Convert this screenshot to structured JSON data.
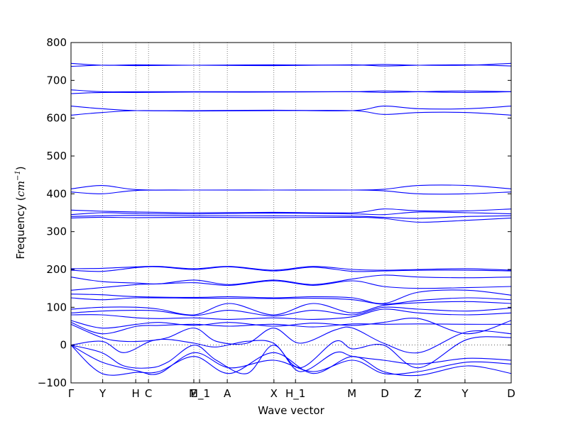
{
  "chart_data": {
    "type": "line",
    "xlabel": "Wave vector",
    "ylabel": "Frequency (cm⁻¹)",
    "ylabel_parts": {
      "main": "Frequency (",
      "unit": "cm",
      "exponent": "−1",
      "close": ")"
    },
    "ylim": [
      -100,
      800
    ],
    "yticks": [
      -100,
      0,
      100,
      200,
      300,
      400,
      500,
      600,
      700,
      800
    ],
    "xlim": [
      0,
      1
    ],
    "high_symmetry_points": [
      {
        "label": "Γ",
        "x": 0.0
      },
      {
        "label": "Y",
        "x": 0.072
      },
      {
        "label": "H",
        "x": 0.147
      },
      {
        "label": "C",
        "x": 0.176
      },
      {
        "label": "E",
        "x": 0.279
      },
      {
        "label": "M_1",
        "x": 0.292
      },
      {
        "label": "A",
        "x": 0.355
      },
      {
        "label": "X",
        "x": 0.461
      },
      {
        "label": "H_1",
        "x": 0.51
      },
      {
        "label": "M",
        "x": 0.638
      },
      {
        "label": "D",
        "x": 0.713
      },
      {
        "label": "Z",
        "x": 0.788
      },
      {
        "label": "Y",
        "x": 0.895
      },
      {
        "label": "D",
        "x": 1.0
      }
    ],
    "zero_line": {
      "y": 0,
      "style": "dotted"
    },
    "line_color": "#0000ff",
    "series": [
      {
        "x": [
          0,
          0.07,
          0.15,
          0.28,
          0.46,
          0.64,
          0.71,
          0.79,
          0.9,
          1.0
        ],
        "y": [
          745,
          740,
          741,
          740,
          741,
          740,
          742,
          740,
          740,
          745
        ]
      },
      {
        "x": [
          0,
          0.07,
          0.15,
          0.28,
          0.46,
          0.64,
          0.71,
          0.79,
          0.9,
          1.0
        ],
        "y": [
          737,
          740,
          739,
          740,
          739,
          741,
          738,
          740,
          741,
          738
        ]
      },
      {
        "x": [
          0,
          0.07,
          0.15,
          0.28,
          0.46,
          0.64,
          0.71,
          0.79,
          0.9,
          1.0
        ],
        "y": [
          675,
          670,
          670,
          670,
          670,
          670,
          668,
          670,
          672,
          670
        ]
      },
      {
        "x": [
          0,
          0.07,
          0.15,
          0.28,
          0.46,
          0.64,
          0.71,
          0.79,
          0.9,
          1.0
        ],
        "y": [
          665,
          668,
          668,
          669,
          669,
          670,
          672,
          670,
          668,
          670
        ]
      },
      {
        "x": [
          0,
          0.07,
          0.15,
          0.28,
          0.46,
          0.64,
          0.71,
          0.79,
          0.9,
          1.0
        ],
        "y": [
          632,
          625,
          620,
          620,
          621,
          620,
          632,
          625,
          625,
          632
        ]
      },
      {
        "x": [
          0,
          0.07,
          0.15,
          0.28,
          0.46,
          0.64,
          0.71,
          0.79,
          0.9,
          1.0
        ],
        "y": [
          608,
          615,
          620,
          619,
          620,
          620,
          610,
          615,
          615,
          608
        ]
      },
      {
        "x": [
          0,
          0.07,
          0.15,
          0.28,
          0.46,
          0.64,
          0.71,
          0.79,
          0.9,
          1.0
        ],
        "y": [
          413,
          422,
          411,
          410,
          410,
          410,
          412,
          422,
          422,
          413
        ]
      },
      {
        "x": [
          0,
          0.07,
          0.15,
          0.28,
          0.46,
          0.64,
          0.71,
          0.79,
          0.9,
          1.0
        ],
        "y": [
          405,
          400,
          409,
          410,
          410,
          410,
          408,
          400,
          400,
          405
        ]
      },
      {
        "x": [
          0,
          0.07,
          0.15,
          0.28,
          0.46,
          0.64,
          0.71,
          0.79,
          0.9,
          1.0
        ],
        "y": [
          357,
          354,
          352,
          350,
          351,
          350,
          360,
          355,
          355,
          360
        ]
      },
      {
        "x": [
          0,
          0.07,
          0.15,
          0.28,
          0.46,
          0.64,
          0.71,
          0.79,
          0.9,
          1.0
        ],
        "y": [
          345,
          350,
          348,
          347,
          349,
          347,
          345,
          352,
          350,
          347
        ]
      },
      {
        "x": [
          0,
          0.07,
          0.15,
          0.28,
          0.46,
          0.64,
          0.71,
          0.79,
          0.9,
          1.0
        ],
        "y": [
          340,
          342,
          343,
          342,
          342,
          341,
          338,
          335,
          340,
          342
        ]
      },
      {
        "x": [
          0,
          0.07,
          0.15,
          0.28,
          0.46,
          0.64,
          0.71,
          0.79,
          0.9,
          1.0
        ],
        "y": [
          336,
          338,
          337,
          338,
          337,
          338,
          335,
          325,
          330,
          336
        ]
      },
      {
        "x": [
          0,
          0.07,
          0.15,
          0.2,
          0.28,
          0.36,
          0.46,
          0.55,
          0.64,
          0.71,
          0.79,
          0.9,
          1.0
        ],
        "y": [
          202,
          203,
          207,
          208,
          202,
          208,
          198,
          208,
          200,
          198,
          200,
          202,
          198
        ]
      },
      {
        "x": [
          0,
          0.07,
          0.15,
          0.2,
          0.28,
          0.36,
          0.46,
          0.55,
          0.64,
          0.71,
          0.79,
          0.9,
          1.0
        ],
        "y": [
          198,
          195,
          205,
          207,
          200,
          207,
          196,
          206,
          195,
          196,
          198,
          198,
          196
        ]
      },
      {
        "x": [
          0,
          0.07,
          0.15,
          0.2,
          0.28,
          0.36,
          0.46,
          0.55,
          0.64,
          0.71,
          0.79,
          0.9,
          1.0
        ],
        "y": [
          180,
          168,
          164,
          162,
          172,
          160,
          172,
          160,
          175,
          185,
          180,
          178,
          180
        ]
      },
      {
        "x": [
          0,
          0.07,
          0.15,
          0.2,
          0.28,
          0.36,
          0.46,
          0.55,
          0.64,
          0.71,
          0.79,
          0.9,
          1.0
        ],
        "y": [
          145,
          152,
          160,
          162,
          165,
          158,
          170,
          158,
          170,
          155,
          150,
          152,
          155
        ]
      },
      {
        "x": [
          0,
          0.07,
          0.15,
          0.28,
          0.36,
          0.46,
          0.55,
          0.64,
          0.71,
          0.79,
          0.9,
          1.0
        ],
        "y": [
          135,
          133,
          128,
          126,
          128,
          125,
          128,
          125,
          110,
          140,
          145,
          132
        ]
      },
      {
        "x": [
          0,
          0.07,
          0.15,
          0.28,
          0.36,
          0.46,
          0.55,
          0.64,
          0.71,
          0.79,
          0.9,
          1.0
        ],
        "y": [
          125,
          120,
          125,
          124,
          124,
          123,
          124,
          120,
          108,
          118,
          125,
          120
        ]
      },
      {
        "x": [
          0,
          0.07,
          0.15,
          0.2,
          0.28,
          0.36,
          0.46,
          0.55,
          0.64,
          0.71,
          0.79,
          0.9,
          1.0
        ],
        "y": [
          95,
          100,
          100,
          95,
          80,
          110,
          80,
          110,
          85,
          105,
          112,
          115,
          110
        ]
      },
      {
        "x": [
          0,
          0.07,
          0.15,
          0.2,
          0.28,
          0.36,
          0.46,
          0.55,
          0.64,
          0.71,
          0.79,
          0.9,
          1.0
        ],
        "y": [
          85,
          90,
          92,
          90,
          78,
          92,
          77,
          92,
          80,
          100,
          95,
          90,
          98
        ]
      },
      {
        "x": [
          0,
          0.07,
          0.15,
          0.2,
          0.28,
          0.36,
          0.46,
          0.55,
          0.64,
          0.71,
          0.79,
          0.9,
          1.0
        ],
        "y": [
          80,
          80,
          72,
          70,
          72,
          68,
          72,
          68,
          75,
          95,
          85,
          80,
          85
        ]
      },
      {
        "x": [
          0,
          0.07,
          0.15,
          0.2,
          0.28,
          0.36,
          0.46,
          0.55,
          0.64,
          0.71,
          0.79,
          0.9,
          1.0
        ],
        "y": [
          65,
          45,
          55,
          60,
          52,
          60,
          50,
          58,
          52,
          60,
          70,
          30,
          65
        ]
      },
      {
        "x": [
          0,
          0.07,
          0.15,
          0.2,
          0.28,
          0.36,
          0.46,
          0.55,
          0.64,
          0.71,
          0.79,
          0.9,
          1.0
        ],
        "y": [
          60,
          30,
          50,
          52,
          55,
          50,
          55,
          48,
          56,
          55,
          56,
          55,
          55
        ]
      },
      {
        "x": [
          0,
          0.07,
          0.12,
          0.18,
          0.22,
          0.28,
          0.33,
          0.4,
          0.46,
          0.52,
          0.6,
          0.64,
          0.71,
          0.79,
          0.9,
          1.0
        ],
        "y": [
          55,
          20,
          10,
          12,
          20,
          45,
          10,
          5,
          45,
          5,
          40,
          45,
          5,
          -20,
          35,
          30
        ]
      },
      {
        "x": [
          0,
          0.07,
          0.12,
          0.18,
          0.22,
          0.28,
          0.33,
          0.4,
          0.46,
          0.52,
          0.6,
          0.64,
          0.71,
          0.79,
          0.9,
          1.0
        ],
        "y": [
          0,
          10,
          -20,
          10,
          15,
          5,
          -5,
          10,
          5,
          -60,
          10,
          -10,
          0,
          -60,
          15,
          20
        ]
      },
      {
        "x": [
          0,
          0.07,
          0.12,
          0.18,
          0.22,
          0.28,
          0.33,
          0.4,
          0.46,
          0.52,
          0.6,
          0.64,
          0.71,
          0.79,
          0.9,
          1.0
        ],
        "y": [
          0,
          -20,
          -55,
          -60,
          -45,
          0,
          -40,
          -75,
          0,
          -70,
          -20,
          -30,
          -40,
          -50,
          -35,
          -40
        ]
      },
      {
        "x": [
          0,
          0.07,
          0.15,
          0.2,
          0.28,
          0.36,
          0.46,
          0.55,
          0.64,
          0.71,
          0.79,
          0.9,
          1.0
        ],
        "y": [
          0,
          -75,
          -72,
          -70,
          -30,
          -75,
          -20,
          -75,
          -30,
          -70,
          -80,
          -55,
          -75
        ]
      },
      {
        "x": [
          0,
          0.07,
          0.15,
          0.2,
          0.28,
          0.36,
          0.46,
          0.55,
          0.64,
          0.71,
          0.79,
          0.9,
          1.0
        ],
        "y": [
          0,
          -45,
          -68,
          -75,
          -20,
          -60,
          -40,
          -70,
          -40,
          -75,
          -70,
          -45,
          -50
        ]
      }
    ]
  }
}
